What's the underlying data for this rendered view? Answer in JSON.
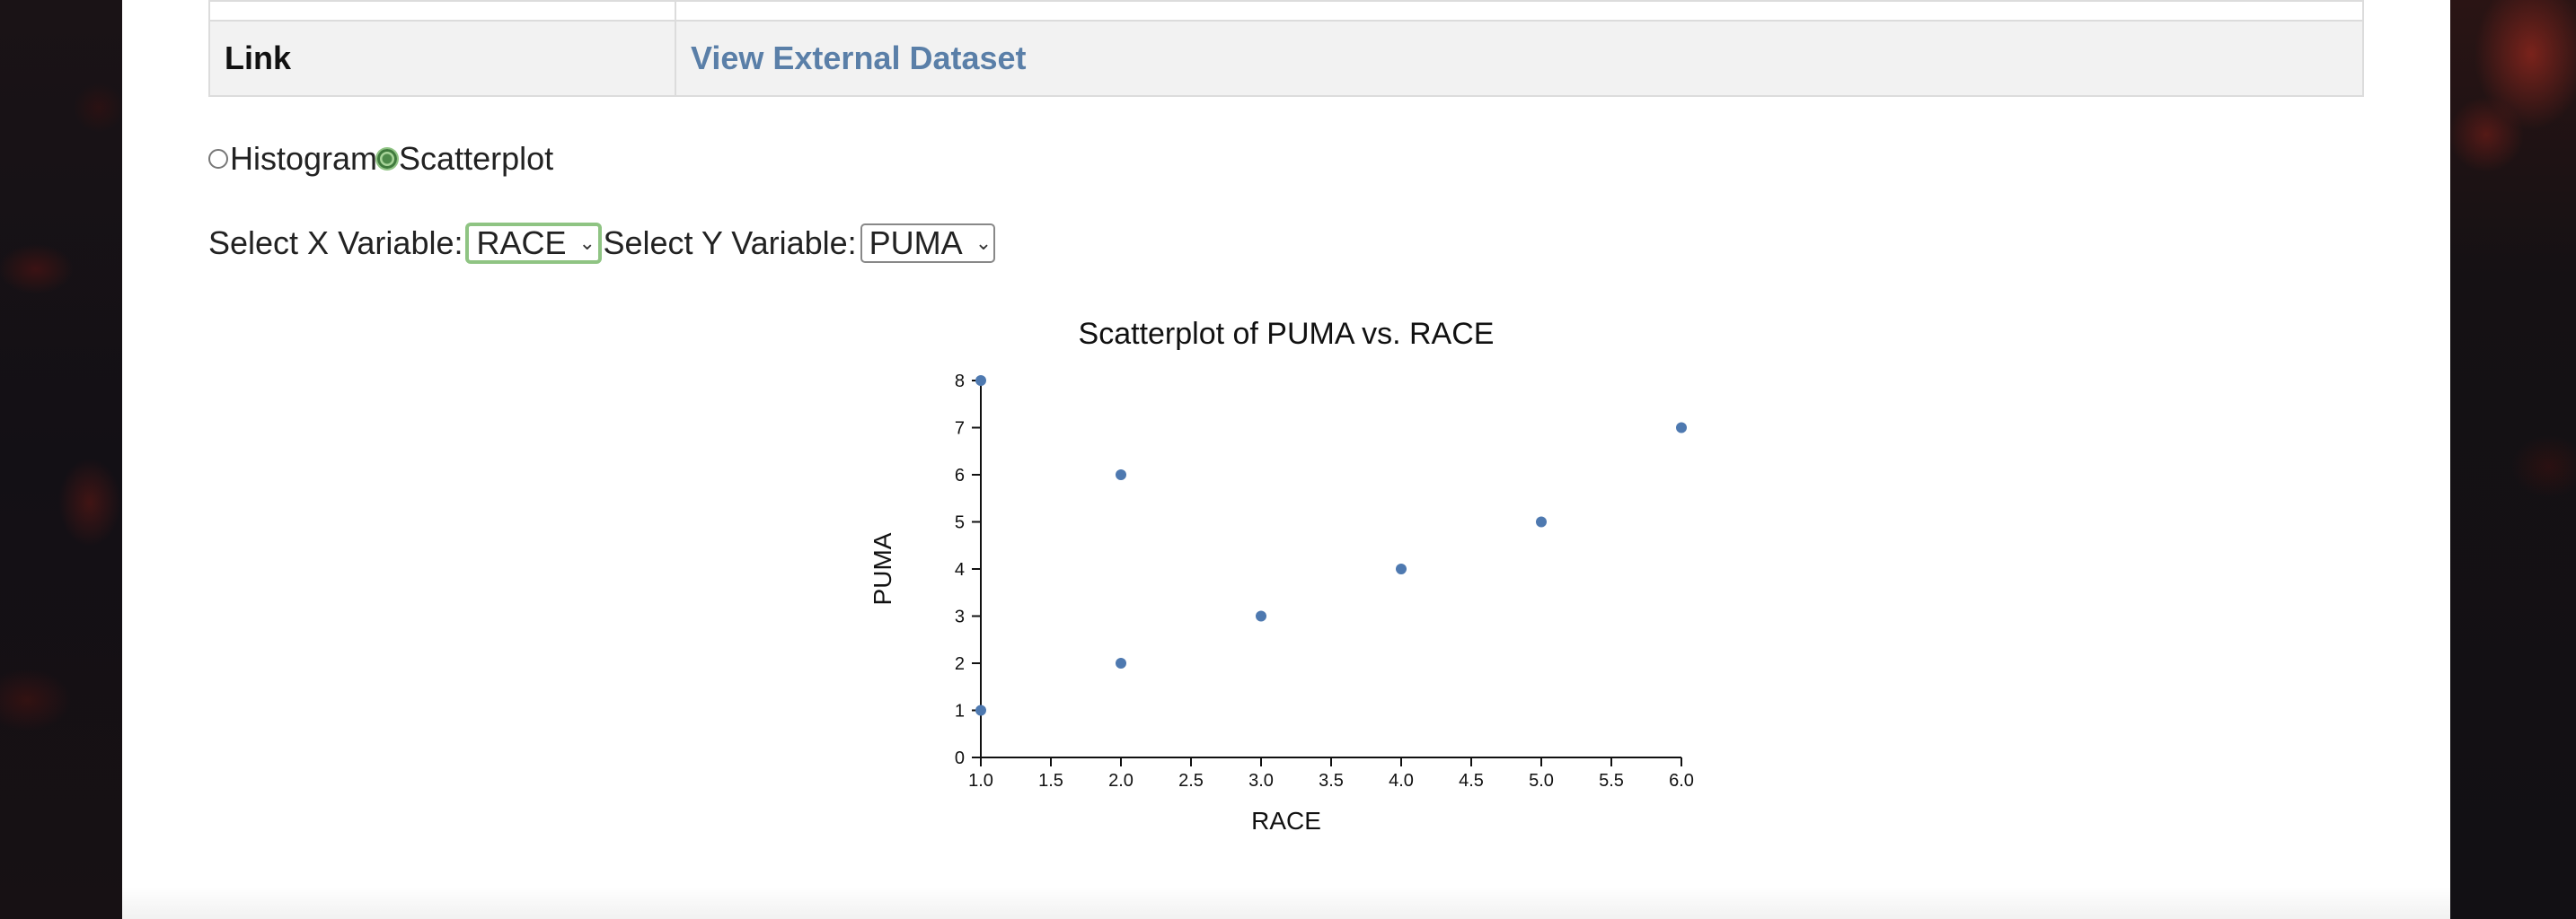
{
  "info_table": {
    "link_label": "Link",
    "link_text": "View External Dataset"
  },
  "plot_type": {
    "options": [
      "Histogram",
      "Scatterplot"
    ],
    "selected": "Scatterplot"
  },
  "variables": {
    "x_label": "Select X Variable:",
    "x_value": "RACE",
    "y_label": "Select Y Variable:",
    "y_value": "PUMA"
  },
  "colors": {
    "point": "#4e79b0",
    "link": "#5a7fa8",
    "focus": "#8fc483"
  },
  "chart_data": {
    "type": "scatter",
    "title": "Scatterplot of PUMA vs. RACE",
    "xlabel": "RACE",
    "ylabel": "PUMA",
    "xlim": [
      1.0,
      6.0
    ],
    "ylim": [
      0,
      8
    ],
    "x_ticks": [
      "1.0",
      "1.5",
      "2.0",
      "2.5",
      "3.0",
      "3.5",
      "4.0",
      "4.5",
      "5.0",
      "5.5",
      "6.0"
    ],
    "y_ticks": [
      "0",
      "1",
      "2",
      "3",
      "4",
      "5",
      "6",
      "7",
      "8"
    ],
    "points": [
      {
        "x": 1,
        "y": 8
      },
      {
        "x": 1,
        "y": 1
      },
      {
        "x": 2,
        "y": 6
      },
      {
        "x": 2,
        "y": 2
      },
      {
        "x": 3,
        "y": 3
      },
      {
        "x": 4,
        "y": 4
      },
      {
        "x": 5,
        "y": 5
      },
      {
        "x": 6,
        "y": 7
      }
    ]
  }
}
